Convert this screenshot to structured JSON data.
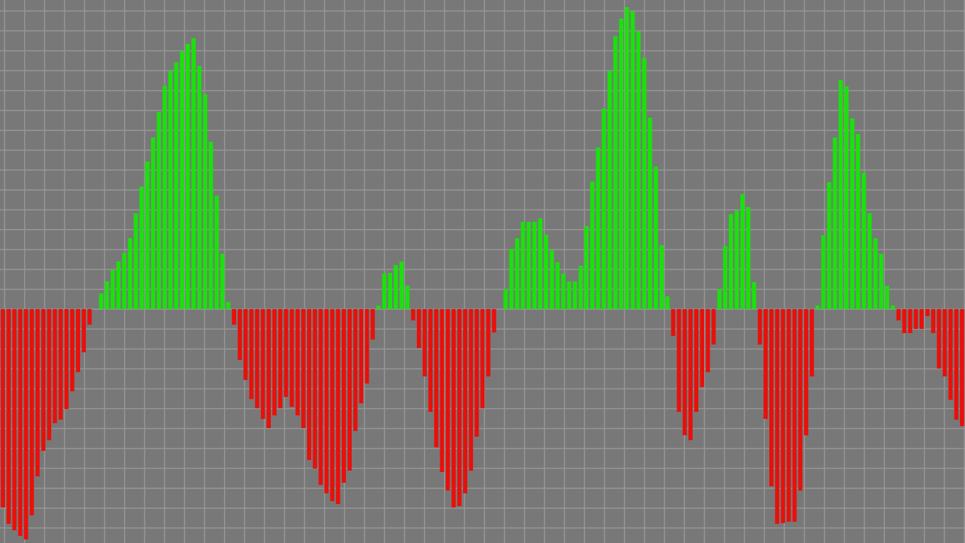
{
  "chart_data": {
    "type": "bar",
    "title": "",
    "xlabel": "",
    "ylabel": "",
    "ylim": [
      -330,
      436
    ],
    "grid": true,
    "legend": "none",
    "colors": {
      "background": "#787878",
      "grid": "#979797",
      "positive": "#19e20b",
      "negative": "#e8100b"
    },
    "values": [
      -280,
      -303,
      -312,
      -320,
      -325,
      -291,
      -236,
      -200,
      -185,
      -161,
      -156,
      -141,
      -116,
      -89,
      -61,
      -22,
      0,
      22,
      39,
      55,
      67,
      79,
      100,
      135,
      173,
      208,
      242,
      278,
      315,
      336,
      348,
      364,
      374,
      382,
      343,
      303,
      236,
      160,
      78,
      10,
      -22,
      -72,
      -100,
      -127,
      -140,
      -155,
      -168,
      -150,
      -140,
      -124,
      -138,
      -150,
      -168,
      -213,
      -225,
      -248,
      -260,
      -271,
      -275,
      -245,
      -228,
      -172,
      -133,
      -105,
      -43,
      5,
      50,
      51,
      62,
      67,
      33,
      -16,
      -55,
      -95,
      -145,
      -195,
      -230,
      -256,
      -280,
      -278,
      -260,
      -228,
      -180,
      -140,
      -95,
      -33,
      0,
      28,
      85,
      100,
      123,
      123,
      123,
      128,
      105,
      83,
      66,
      50,
      39,
      39,
      61,
      117,
      180,
      228,
      283,
      336,
      385,
      410,
      426,
      420,
      392,
      354,
      270,
      201,
      90,
      18,
      -38,
      -145,
      -178,
      -185,
      -145,
      -110,
      -89,
      -50,
      28,
      89,
      134,
      139,
      162,
      144,
      38,
      -50,
      -155,
      -250,
      -303,
      -302,
      -300,
      -300,
      -256,
      -178,
      -95,
      5,
      104,
      179,
      242,
      323,
      314,
      269,
      247,
      192,
      135,
      100,
      78,
      33,
      5,
      -16,
      -34,
      -34,
      -28,
      -28,
      -10,
      -34,
      -84,
      -95,
      -128,
      -156,
      -165
    ]
  }
}
